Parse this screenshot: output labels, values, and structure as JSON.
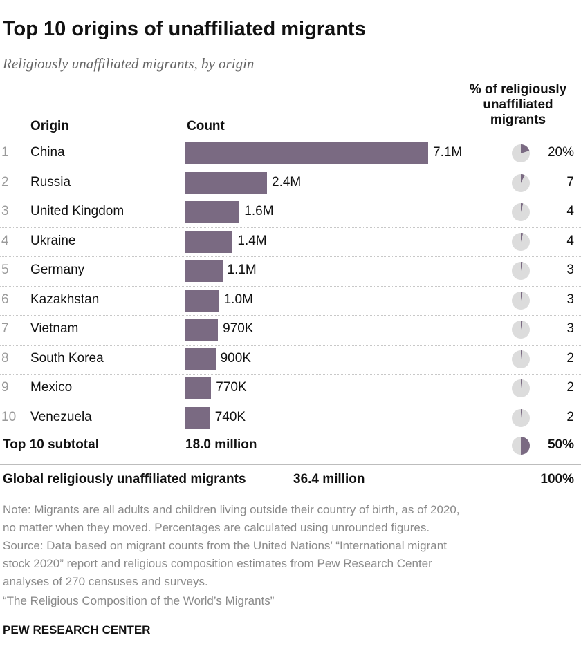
{
  "title": "Top 10 origins of unaffiliated migrants",
  "subtitle": "Religiously unaffiliated migrants, by origin",
  "headers": {
    "origin": "Origin",
    "count": "Count",
    "pct": [
      "% of religiously",
      "unaffiliated",
      "migrants"
    ]
  },
  "chart_data": {
    "type": "bar",
    "categories": [
      "China",
      "Russia",
      "United Kingdom",
      "Ukraine",
      "Germany",
      "Kazakhstan",
      "Vietnam",
      "South Korea",
      "Mexico",
      "Venezuela"
    ],
    "values": [
      7.1,
      2.4,
      1.6,
      1.4,
      1.1,
      1.0,
      0.97,
      0.9,
      0.77,
      0.74
    ],
    "units": "million",
    "ranks": [
      "1",
      "2",
      "3",
      "4",
      "5",
      "6",
      "7",
      "8",
      "9",
      "10"
    ],
    "value_labels": [
      "7.1M",
      "2.4M",
      "1.6M",
      "1.4M",
      "1.1M",
      "1.0M",
      "970K",
      "900K",
      "770K",
      "740K"
    ],
    "pct_labels": [
      "20%",
      "7",
      "4",
      "4",
      "3",
      "3",
      "3",
      "2",
      "2",
      "2"
    ],
    "pct_values": [
      20,
      7,
      4,
      4,
      3,
      3,
      3,
      2,
      2,
      2
    ],
    "bar_color": "#7a6a82",
    "pie_base_color": "#dcdcdc"
  },
  "subtotal": {
    "label": "Top 10 subtotal",
    "value": "18.0 million",
    "pct_label": "50%",
    "pct_value": 50
  },
  "global": {
    "label": "Global religiously unaffiliated migrants",
    "value": "36.4 million",
    "pct_label": "100%"
  },
  "notes": [
    "Note: Migrants are all adults and children living outside their country of birth, as of 2020,",
    "no matter when they moved. Percentages are calculated using unrounded figures.",
    "Source: Data based on migrant counts from the United Nations’ “International migrant",
    "stock 2020” report and religious composition estimates from Pew Research Center",
    "analyses of 270 censuses and surveys.",
    "“The Religious Composition of the World’s Migrants”"
  ],
  "brand": "PEW RESEARCH CENTER"
}
